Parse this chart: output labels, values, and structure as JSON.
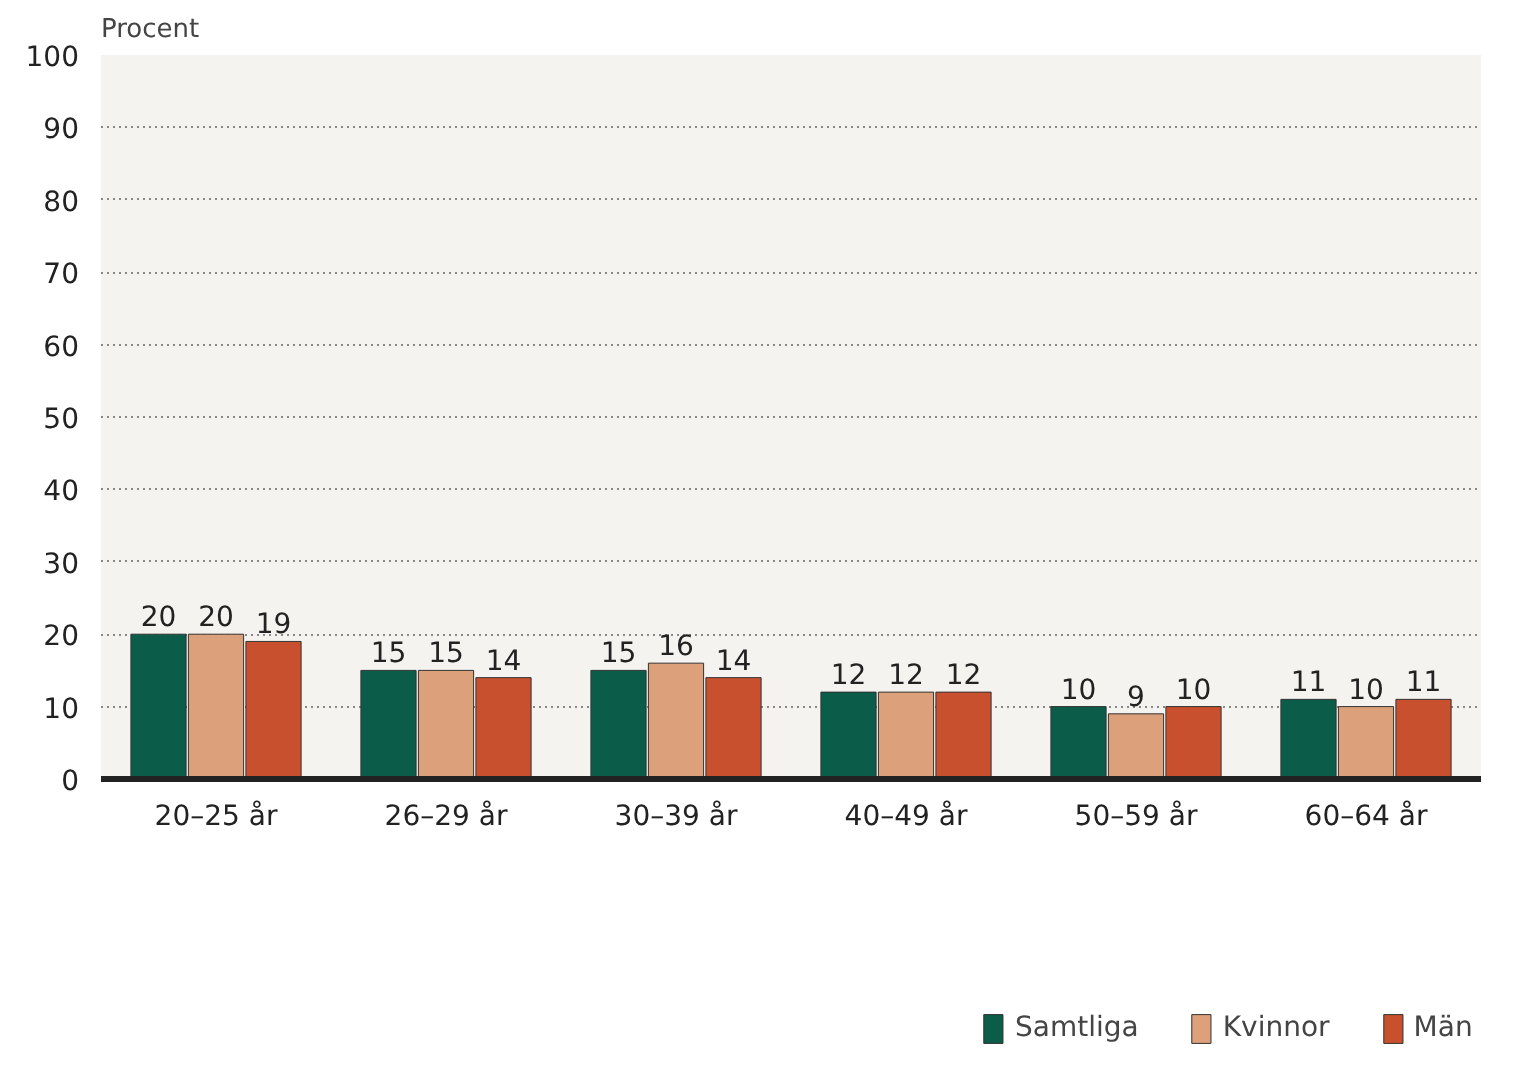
{
  "chart_data": {
    "type": "bar",
    "ylabel": "Procent",
    "categories": [
      "20–25 år",
      "26–29 år",
      "30–39 år",
      "40–49 år",
      "50–59 år",
      "60–64 år"
    ],
    "series": [
      {
        "name": "Samtliga",
        "color": "#0b5c48",
        "values": [
          20,
          15,
          15,
          12,
          10,
          11
        ]
      },
      {
        "name": "Kvinnor",
        "color": "#dca07a",
        "values": [
          20,
          15,
          16,
          12,
          9,
          10
        ]
      },
      {
        "name": "Män",
        "color": "#c8502e",
        "values": [
          19,
          14,
          14,
          12,
          10,
          11
        ]
      }
    ],
    "ylim": [
      0,
      100
    ],
    "yticks": [
      0,
      10,
      20,
      30,
      40,
      50,
      60,
      70,
      80,
      90,
      100
    ],
    "grid": "y",
    "legend": "bottom",
    "data_labels": true
  }
}
